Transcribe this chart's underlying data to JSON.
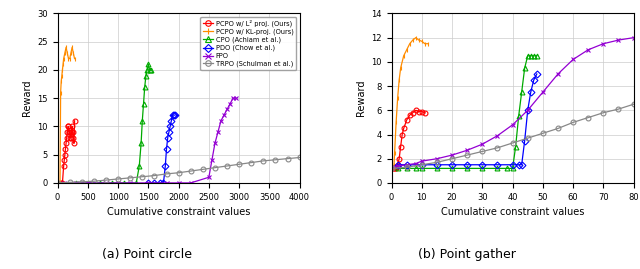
{
  "left_plot": {
    "xlabel": "Cumulative constraint values",
    "ylabel": "Reward",
    "xlim": [
      0,
      4000
    ],
    "ylim": [
      0,
      30
    ],
    "xticks": [
      0,
      500,
      1000,
      1500,
      2000,
      2500,
      3000,
      3500,
      4000
    ],
    "yticks": [
      0,
      5,
      10,
      15,
      20,
      25,
      30
    ],
    "caption": "(a) Point circle",
    "series": [
      {
        "label": "PCPO w/ L² proj. (Ours)",
        "color": "#ff0000",
        "marker": "o",
        "x": [
          50,
          80,
          100,
          110,
          120,
          130,
          140,
          150,
          160,
          170,
          180,
          190,
          200,
          210,
          220,
          230,
          240,
          250,
          260,
          270,
          280
        ],
        "y": [
          0,
          0,
          3,
          4,
          5,
          6,
          7,
          8,
          9,
          10,
          10,
          9,
          9,
          8,
          8,
          9,
          10,
          9,
          8,
          7,
          11
        ]
      },
      {
        "label": "PCPO w/ KL-proj. (Ours)",
        "color": "#ff8c00",
        "marker": "|",
        "x": [
          10,
          20,
          30,
          40,
          50,
          60,
          70,
          80,
          90,
          100,
          120,
          140,
          160,
          180,
          200,
          220,
          240,
          260,
          280
        ],
        "y": [
          0,
          0,
          0,
          0,
          16,
          18,
          19,
          20,
          21,
          22,
          23,
          24,
          23,
          22,
          22,
          23,
          24,
          23,
          22
        ]
      },
      {
        "label": "CPO (Achiam et al.)",
        "color": "#00aa00",
        "marker": "^",
        "x": [
          300,
          500,
          700,
          900,
          1100,
          1300,
          1350,
          1380,
          1400,
          1420,
          1440,
          1460,
          1480,
          1500,
          1520,
          1540
        ],
        "y": [
          0,
          0,
          0,
          0,
          0,
          0,
          3,
          7,
          11,
          14,
          17,
          19,
          20,
          21,
          20,
          20
        ]
      },
      {
        "label": "PDO (Chow et al.)",
        "color": "#0000ff",
        "marker": "D",
        "x": [
          1500,
          1600,
          1700,
          1750,
          1780,
          1800,
          1820,
          1840,
          1860,
          1880,
          1900,
          1920,
          1940
        ],
        "y": [
          0,
          0,
          0,
          0,
          3,
          6,
          8,
          9,
          10,
          11,
          12,
          12,
          12
        ]
      },
      {
        "label": "FPO",
        "color": "#9400d3",
        "marker": "x",
        "x": [
          100,
          300,
          500,
          800,
          1000,
          1200,
          1500,
          1800,
          2000,
          2200,
          2500,
          2550,
          2600,
          2650,
          2700,
          2750,
          2800,
          2850,
          2900,
          2950
        ],
        "y": [
          0,
          0,
          0,
          0,
          0,
          0,
          0,
          0,
          0,
          0,
          1,
          4,
          7,
          9,
          11,
          12,
          13,
          14,
          15,
          15
        ]
      },
      {
        "label": "TRPO (Schulman et al.)",
        "color": "#888888",
        "marker": "o",
        "x": [
          0,
          200,
          400,
          600,
          800,
          1000,
          1200,
          1400,
          1600,
          1800,
          2000,
          2200,
          2400,
          2600,
          2800,
          3000,
          3200,
          3400,
          3600,
          3800,
          4000
        ],
        "y": [
          0,
          0.1,
          0.2,
          0.3,
          0.5,
          0.7,
          0.9,
          1.1,
          1.3,
          1.6,
          1.8,
          2.1,
          2.4,
          2.7,
          3.0,
          3.3,
          3.6,
          3.9,
          4.1,
          4.3,
          4.5
        ]
      }
    ]
  },
  "right_plot": {
    "xlabel": "Cumulative constraint values",
    "ylabel": "Reward",
    "xlim": [
      0,
      80
    ],
    "ylim": [
      0,
      14
    ],
    "xticks": [
      0,
      10,
      20,
      30,
      40,
      50,
      60,
      70,
      80
    ],
    "yticks": [
      0,
      2,
      4,
      6,
      8,
      10,
      12,
      14
    ],
    "caption": "(b) Point gather",
    "series": [
      {
        "label": "PCPO w/ L² proj. (Ours)",
        "color": "#ff0000",
        "marker": "o",
        "x": [
          0.3,
          0.5,
          0.8,
          1.0,
          1.3,
          1.5,
          2.0,
          2.5,
          3.0,
          3.5,
          4.0,
          5.0,
          6.0,
          7.0,
          8.0,
          9.0,
          10.0,
          11.0
        ],
        "y": [
          1.2,
          1.2,
          1.2,
          1.2,
          1.2,
          1.3,
          1.5,
          2.0,
          3.0,
          4.0,
          4.5,
          5.2,
          5.6,
          5.8,
          6.0,
          5.9,
          5.9,
          5.8
        ]
      },
      {
        "label": "PCPO w/ KL-proj. (Ours)",
        "color": "#ff8c00",
        "marker": "|",
        "x": [
          0.2,
          0.4,
          0.6,
          0.8,
          1.0,
          1.5,
          2.0,
          2.5,
          3.0,
          4.0,
          5.0,
          6.0,
          7.0,
          8.0,
          9.0,
          10.0,
          11.0,
          12.0
        ],
        "y": [
          1.3,
          1.3,
          1.3,
          1.5,
          2.5,
          5.0,
          7.0,
          8.5,
          9.5,
          10.5,
          11.0,
          11.5,
          11.8,
          12.0,
          11.8,
          11.7,
          11.5,
          11.5
        ]
      },
      {
        "label": "CPO (Achiam et al.)",
        "color": "#00aa00",
        "marker": "^",
        "x": [
          2,
          5,
          8,
          10,
          15,
          20,
          25,
          30,
          35,
          38,
          40,
          41,
          42,
          43,
          44,
          45,
          46,
          47,
          48
        ],
        "y": [
          1.2,
          1.2,
          1.2,
          1.2,
          1.2,
          1.2,
          1.2,
          1.2,
          1.2,
          1.2,
          1.2,
          3.0,
          5.5,
          7.5,
          9.5,
          10.5,
          10.5,
          10.5,
          10.5
        ]
      },
      {
        "label": "PDO (Chow et al.)",
        "color": "#0000ff",
        "marker": "D",
        "x": [
          2,
          5,
          10,
          15,
          20,
          25,
          30,
          35,
          40,
          42,
          43,
          44,
          45,
          46,
          47,
          48
        ],
        "y": [
          1.5,
          1.5,
          1.5,
          1.5,
          1.5,
          1.5,
          1.5,
          1.5,
          1.5,
          1.5,
          1.5,
          3.5,
          6.0,
          7.5,
          8.5,
          9.0
        ]
      },
      {
        "label": "FPO",
        "color": "#9400d3",
        "marker": "x",
        "x": [
          0,
          2,
          5,
          8,
          10,
          15,
          20,
          25,
          30,
          35,
          40,
          45,
          50,
          55,
          60,
          65,
          70,
          75,
          80
        ],
        "y": [
          1.3,
          1.4,
          1.5,
          1.6,
          1.8,
          2.0,
          2.3,
          2.7,
          3.2,
          3.9,
          4.8,
          6.0,
          7.5,
          9.0,
          10.2,
          11.0,
          11.5,
          11.8,
          12.0
        ]
      },
      {
        "label": "TRPO (Schulman et al.)",
        "color": "#888888",
        "marker": "o",
        "x": [
          0,
          5,
          10,
          15,
          20,
          25,
          30,
          35,
          40,
          45,
          50,
          55,
          60,
          65,
          70,
          75,
          80
        ],
        "y": [
          1.2,
          1.3,
          1.5,
          1.7,
          2.0,
          2.3,
          2.6,
          2.9,
          3.3,
          3.7,
          4.1,
          4.5,
          5.0,
          5.4,
          5.8,
          6.1,
          6.5
        ]
      }
    ]
  },
  "legend_labels": [
    "PCPO w/ L² proj. (Ours)",
    "PCPO w/ KL-proj. (Ours)",
    "CPO (Achiam et al.)",
    "PDO (Chow et al.)",
    "FPO",
    "TRPO (Schulman et al.)"
  ],
  "legend_colors": [
    "#ff0000",
    "#ff8c00",
    "#00aa00",
    "#0000ff",
    "#9400d3",
    "#888888"
  ],
  "legend_markers": [
    "o",
    "|",
    "^",
    "D",
    "x",
    "o"
  ]
}
